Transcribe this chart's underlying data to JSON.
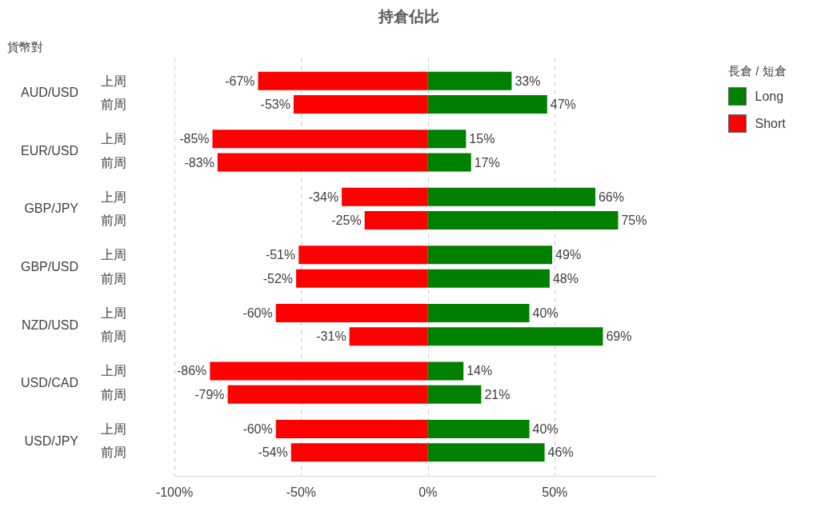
{
  "chart_data": {
    "type": "bar",
    "title": "持倉佔比",
    "ylabel": "貨幣對",
    "legend_title": "長倉 / 短倉",
    "orientation": "horizontal",
    "stacked": true,
    "categories": [
      "上周",
      "前周",
      "上周",
      "前周",
      "上周",
      "前周",
      "上周",
      "前周",
      "上周",
      "前周",
      "上周",
      "前周",
      "上周",
      "前周"
    ],
    "annotations": [
      "AUD/USD",
      "EUR/USD",
      "GBP/JPY",
      "GBP/USD",
      "NZD/USD",
      "USD/CAD",
      "USD/JPY"
    ],
    "series": [
      {
        "name": "Long",
        "color": "#008000",
        "values": [
          33,
          47,
          15,
          17,
          66,
          75,
          49,
          48,
          40,
          69,
          14,
          21,
          40,
          46
        ],
        "value_labels": [
          "33%",
          "47%",
          "15%",
          "17%",
          "66%",
          "75%",
          "49%",
          "48%",
          "40%",
          "69%",
          "14%",
          "21%",
          "40%",
          "46%"
        ]
      },
      {
        "name": "Short",
        "color": "#ff0000",
        "values": [
          -67,
          -53,
          -85,
          -83,
          -34,
          -25,
          -51,
          -52,
          -60,
          -31,
          -86,
          -79,
          -60,
          -54
        ],
        "value_labels": [
          "-67%",
          "-53%",
          "-85%",
          "-83%",
          "-34%",
          "-25%",
          "-51%",
          "-52%",
          "-60%",
          "-31%",
          "-86%",
          "-79%",
          "-60%",
          "-54%"
        ]
      }
    ],
    "xlim": [
      -100,
      90
    ],
    "xticks": [
      {
        "value": -100,
        "label": "-100%"
      },
      {
        "value": -50,
        "label": "-50%"
      },
      {
        "value": 0,
        "label": "0%"
      },
      {
        "value": 50,
        "label": "50%"
      }
    ],
    "grid": "x",
    "legend": "top right"
  }
}
